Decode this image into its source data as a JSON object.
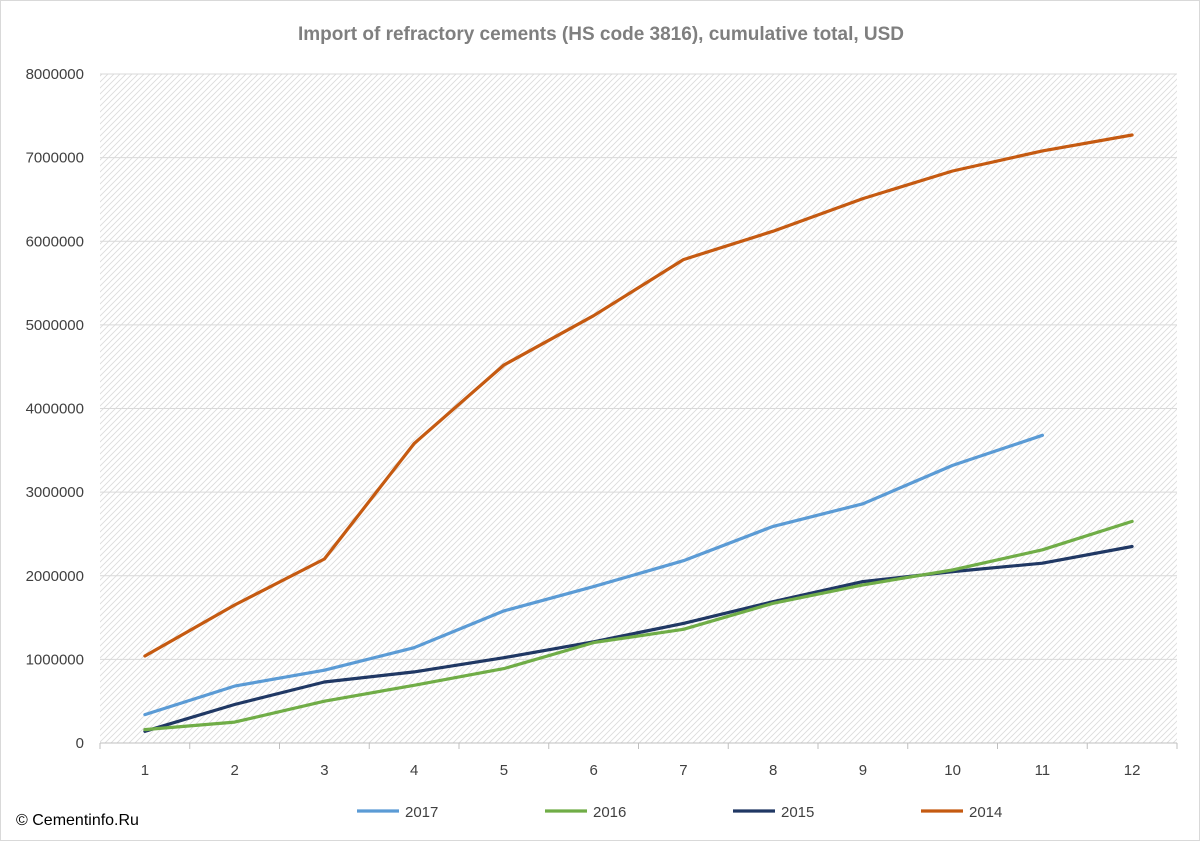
{
  "credit": "© Cementinfo.Ru",
  "chart_data": {
    "type": "line",
    "title": "Import of refractory cements (HS code 3816), cumulative total, USD",
    "xlabel": "",
    "ylabel": "",
    "x": [
      1,
      2,
      3,
      4,
      5,
      6,
      7,
      8,
      9,
      10,
      11,
      12
    ],
    "ylim": [
      0,
      8000000
    ],
    "yticks": [
      0,
      1000000,
      2000000,
      3000000,
      4000000,
      5000000,
      6000000,
      7000000,
      8000000
    ],
    "ytick_labels": [
      "0",
      "1000000",
      "2000000",
      "3000000",
      "4000000",
      "5000000",
      "6000000",
      "7000000",
      "8000000"
    ],
    "grid": true,
    "legend_position": "bottom",
    "series": [
      {
        "name": "2017",
        "color": "#5b9bd5",
        "values": [
          340000,
          680000,
          870000,
          1140000,
          1580000,
          1870000,
          2180000,
          2590000,
          2860000,
          3320000,
          3680000,
          null
        ]
      },
      {
        "name": "2016",
        "color": "#70ad47",
        "values": [
          160000,
          250000,
          500000,
          690000,
          890000,
          1200000,
          1360000,
          1670000,
          1890000,
          2070000,
          2310000,
          2650000
        ]
      },
      {
        "name": "2015",
        "color": "#203864",
        "values": [
          140000,
          460000,
          730000,
          850000,
          1020000,
          1210000,
          1430000,
          1690000,
          1930000,
          2050000,
          2150000,
          2350000
        ]
      },
      {
        "name": "2014",
        "color": "#c55a11",
        "values": [
          1040000,
          1650000,
          2200000,
          3580000,
          4520000,
          5110000,
          5780000,
          6120000,
          6510000,
          6840000,
          7080000,
          7270000
        ]
      }
    ]
  }
}
